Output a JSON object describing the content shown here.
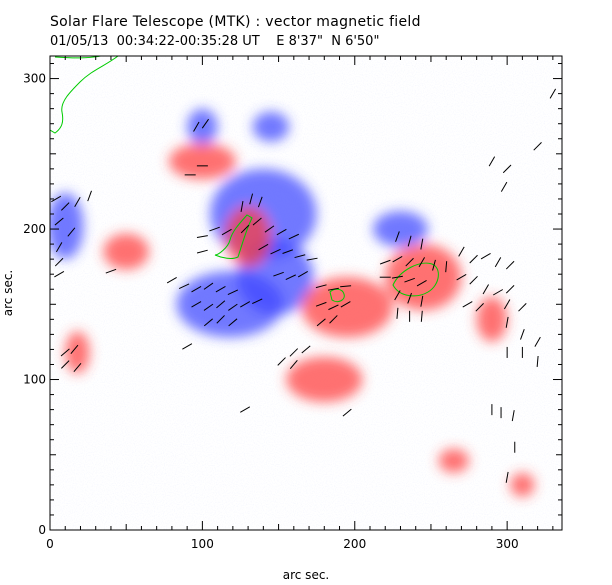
{
  "title": "Solar Flare Telescope (MTK) : vector magnetic field",
  "subtitle": "01/05/13  00:34:22-00:35:28 UT    E 8'37\"  N 6'50\"",
  "colors": {
    "positive_polarity": "#ff3b3b",
    "negative_polarity": "#3b45ff",
    "contour": "#00cc00",
    "vectors": "#000000"
  },
  "chart_data": {
    "type": "heatmap",
    "title": "Solar Flare Telescope (MTK) : vector magnetic field",
    "xlabel": "arc sec.",
    "ylabel": "arc sec.",
    "xlim": [
      0,
      336
    ],
    "ylim": [
      0,
      315
    ],
    "x_ticks": [
      0,
      100,
      200,
      300
    ],
    "y_ticks": [
      0,
      100,
      200,
      300
    ],
    "grid": false,
    "regions": [
      {
        "polarity": "negative",
        "cx": 100,
        "cy": 268,
        "rx": 10,
        "ry": 12
      },
      {
        "polarity": "negative",
        "cx": 140,
        "cy": 210,
        "rx": 35,
        "ry": 30
      },
      {
        "polarity": "negative",
        "cx": 118,
        "cy": 150,
        "rx": 35,
        "ry": 22
      },
      {
        "polarity": "negative",
        "cx": 148,
        "cy": 168,
        "rx": 25,
        "ry": 25
      },
      {
        "polarity": "negative",
        "cx": 10,
        "cy": 202,
        "rx": 12,
        "ry": 22
      },
      {
        "polarity": "negative",
        "cx": 230,
        "cy": 200,
        "rx": 18,
        "ry": 12
      },
      {
        "polarity": "negative",
        "cx": 145,
        "cy": 268,
        "rx": 12,
        "ry": 10
      },
      {
        "polarity": "positive",
        "cx": 245,
        "cy": 168,
        "rx": 25,
        "ry": 22
      },
      {
        "polarity": "positive",
        "cx": 195,
        "cy": 148,
        "rx": 30,
        "ry": 20
      },
      {
        "polarity": "positive",
        "cx": 180,
        "cy": 100,
        "rx": 25,
        "ry": 15
      },
      {
        "polarity": "positive",
        "cx": 130,
        "cy": 195,
        "rx": 15,
        "ry": 20
      },
      {
        "polarity": "positive",
        "cx": 100,
        "cy": 245,
        "rx": 22,
        "ry": 12
      },
      {
        "polarity": "positive",
        "cx": 18,
        "cy": 118,
        "rx": 8,
        "ry": 14
      },
      {
        "polarity": "positive",
        "cx": 50,
        "cy": 185,
        "rx": 15,
        "ry": 12
      },
      {
        "polarity": "positive",
        "cx": 290,
        "cy": 140,
        "rx": 10,
        "ry": 15
      },
      {
        "polarity": "positive",
        "cx": 265,
        "cy": 46,
        "rx": 10,
        "ry": 8
      },
      {
        "polarity": "positive",
        "cx": 310,
        "cy": 30,
        "rx": 8,
        "ry": 8
      }
    ],
    "vectors": [
      {
        "x": 96,
        "y": 268,
        "angle": 60
      },
      {
        "x": 102,
        "y": 270,
        "angle": 55
      },
      {
        "x": 92,
        "y": 236,
        "angle": 0
      },
      {
        "x": 100,
        "y": 242,
        "angle": 0
      },
      {
        "x": 4,
        "y": 220,
        "angle": 30
      },
      {
        "x": 10,
        "y": 215,
        "angle": 45
      },
      {
        "x": 18,
        "y": 218,
        "angle": 60
      },
      {
        "x": 26,
        "y": 222,
        "angle": 70
      },
      {
        "x": 6,
        "y": 205,
        "angle": 40
      },
      {
        "x": 14,
        "y": 198,
        "angle": 50
      },
      {
        "x": 6,
        "y": 188,
        "angle": 60
      },
      {
        "x": 6,
        "y": 178,
        "angle": 45
      },
      {
        "x": 6,
        "y": 170,
        "angle": 30
      },
      {
        "x": 40,
        "y": 172,
        "angle": 20
      },
      {
        "x": 100,
        "y": 195,
        "angle": 10
      },
      {
        "x": 108,
        "y": 200,
        "angle": 20
      },
      {
        "x": 116,
        "y": 198,
        "angle": 30
      },
      {
        "x": 100,
        "y": 185,
        "angle": 15
      },
      {
        "x": 126,
        "y": 215,
        "angle": 80
      },
      {
        "x": 132,
        "y": 220,
        "angle": 75
      },
      {
        "x": 138,
        "y": 218,
        "angle": 70
      },
      {
        "x": 128,
        "y": 200,
        "angle": 45
      },
      {
        "x": 136,
        "y": 205,
        "angle": 40
      },
      {
        "x": 144,
        "y": 200,
        "angle": 35
      },
      {
        "x": 152,
        "y": 198,
        "angle": 30
      },
      {
        "x": 160,
        "y": 195,
        "angle": 25
      },
      {
        "x": 140,
        "y": 188,
        "angle": 30
      },
      {
        "x": 148,
        "y": 185,
        "angle": 25
      },
      {
        "x": 156,
        "y": 185,
        "angle": 20
      },
      {
        "x": 164,
        "y": 182,
        "angle": 15
      },
      {
        "x": 172,
        "y": 180,
        "angle": 10
      },
      {
        "x": 80,
        "y": 166,
        "angle": 30
      },
      {
        "x": 88,
        "y": 162,
        "angle": 25
      },
      {
        "x": 96,
        "y": 160,
        "angle": 30
      },
      {
        "x": 104,
        "y": 162,
        "angle": 35
      },
      {
        "x": 112,
        "y": 160,
        "angle": 30
      },
      {
        "x": 120,
        "y": 158,
        "angle": 25
      },
      {
        "x": 96,
        "y": 150,
        "angle": 30
      },
      {
        "x": 104,
        "y": 148,
        "angle": 35
      },
      {
        "x": 112,
        "y": 150,
        "angle": 40
      },
      {
        "x": 120,
        "y": 148,
        "angle": 35
      },
      {
        "x": 128,
        "y": 150,
        "angle": 30
      },
      {
        "x": 136,
        "y": 152,
        "angle": 25
      },
      {
        "x": 104,
        "y": 138,
        "angle": 40
      },
      {
        "x": 112,
        "y": 140,
        "angle": 45
      },
      {
        "x": 120,
        "y": 138,
        "angle": 40
      },
      {
        "x": 150,
        "y": 170,
        "angle": 20
      },
      {
        "x": 158,
        "y": 168,
        "angle": 25
      },
      {
        "x": 166,
        "y": 170,
        "angle": 30
      },
      {
        "x": 178,
        "y": 162,
        "angle": 15
      },
      {
        "x": 186,
        "y": 160,
        "angle": 10
      },
      {
        "x": 194,
        "y": 162,
        "angle": 5
      },
      {
        "x": 178,
        "y": 150,
        "angle": 20
      },
      {
        "x": 186,
        "y": 148,
        "angle": 25
      },
      {
        "x": 194,
        "y": 150,
        "angle": 30
      },
      {
        "x": 178,
        "y": 138,
        "angle": 40
      },
      {
        "x": 186,
        "y": 140,
        "angle": 45
      },
      {
        "x": 160,
        "y": 118,
        "angle": 45
      },
      {
        "x": 168,
        "y": 120,
        "angle": 40
      },
      {
        "x": 160,
        "y": 110,
        "angle": 50
      },
      {
        "x": 152,
        "y": 112,
        "angle": 45
      },
      {
        "x": 228,
        "y": 195,
        "angle": 70
      },
      {
        "x": 236,
        "y": 192,
        "angle": 75
      },
      {
        "x": 244,
        "y": 190,
        "angle": 80
      },
      {
        "x": 220,
        "y": 178,
        "angle": 20
      },
      {
        "x": 228,
        "y": 180,
        "angle": 30
      },
      {
        "x": 236,
        "y": 178,
        "angle": 45
      },
      {
        "x": 244,
        "y": 178,
        "angle": 60
      },
      {
        "x": 252,
        "y": 176,
        "angle": 75
      },
      {
        "x": 260,
        "y": 175,
        "angle": 85
      },
      {
        "x": 220,
        "y": 168,
        "angle": 0
      },
      {
        "x": 228,
        "y": 168,
        "angle": 10
      },
      {
        "x": 236,
        "y": 166,
        "angle": 20
      },
      {
        "x": 244,
        "y": 164,
        "angle": 30
      },
      {
        "x": 228,
        "y": 156,
        "angle": 60
      },
      {
        "x": 236,
        "y": 154,
        "angle": 70
      },
      {
        "x": 244,
        "y": 152,
        "angle": 80
      },
      {
        "x": 228,
        "y": 144,
        "angle": 85
      },
      {
        "x": 236,
        "y": 142,
        "angle": 90
      },
      {
        "x": 244,
        "y": 142,
        "angle": 85
      },
      {
        "x": 270,
        "y": 185,
        "angle": 60
      },
      {
        "x": 278,
        "y": 180,
        "angle": 45
      },
      {
        "x": 286,
        "y": 182,
        "angle": 30
      },
      {
        "x": 294,
        "y": 178,
        "angle": 60
      },
      {
        "x": 302,
        "y": 176,
        "angle": 45
      },
      {
        "x": 270,
        "y": 168,
        "angle": 30
      },
      {
        "x": 278,
        "y": 166,
        "angle": 45
      },
      {
        "x": 286,
        "y": 160,
        "angle": 60
      },
      {
        "x": 294,
        "y": 158,
        "angle": 30
      },
      {
        "x": 302,
        "y": 160,
        "angle": 45
      },
      {
        "x": 274,
        "y": 150,
        "angle": 30
      },
      {
        "x": 282,
        "y": 148,
        "angle": 45
      },
      {
        "x": 300,
        "y": 150,
        "angle": 60
      },
      {
        "x": 310,
        "y": 148,
        "angle": 45
      },
      {
        "x": 300,
        "y": 138,
        "angle": 80
      },
      {
        "x": 310,
        "y": 130,
        "angle": 70
      },
      {
        "x": 320,
        "y": 125,
        "angle": 60
      },
      {
        "x": 300,
        "y": 118,
        "angle": 90
      },
      {
        "x": 310,
        "y": 118,
        "angle": 90
      },
      {
        "x": 320,
        "y": 112,
        "angle": 85
      },
      {
        "x": 290,
        "y": 245,
        "angle": 60
      },
      {
        "x": 300,
        "y": 240,
        "angle": 45
      },
      {
        "x": 298,
        "y": 228,
        "angle": 60
      },
      {
        "x": 320,
        "y": 255,
        "angle": 45
      },
      {
        "x": 330,
        "y": 290,
        "angle": 60
      },
      {
        "x": 290,
        "y": 80,
        "angle": 90
      },
      {
        "x": 296,
        "y": 78,
        "angle": 90
      },
      {
        "x": 304,
        "y": 76,
        "angle": 80
      },
      {
        "x": 305,
        "y": 55,
        "angle": 90
      },
      {
        "x": 300,
        "y": 35,
        "angle": 80
      },
      {
        "x": 10,
        "y": 118,
        "angle": 40
      },
      {
        "x": 16,
        "y": 120,
        "angle": 50
      },
      {
        "x": 10,
        "y": 110,
        "angle": 45
      },
      {
        "x": 18,
        "y": 108,
        "angle": 50
      },
      {
        "x": 90,
        "y": 122,
        "angle": 30
      },
      {
        "x": 128,
        "y": 80,
        "angle": 30
      },
      {
        "x": 195,
        "y": 78,
        "angle": 40
      }
    ]
  }
}
